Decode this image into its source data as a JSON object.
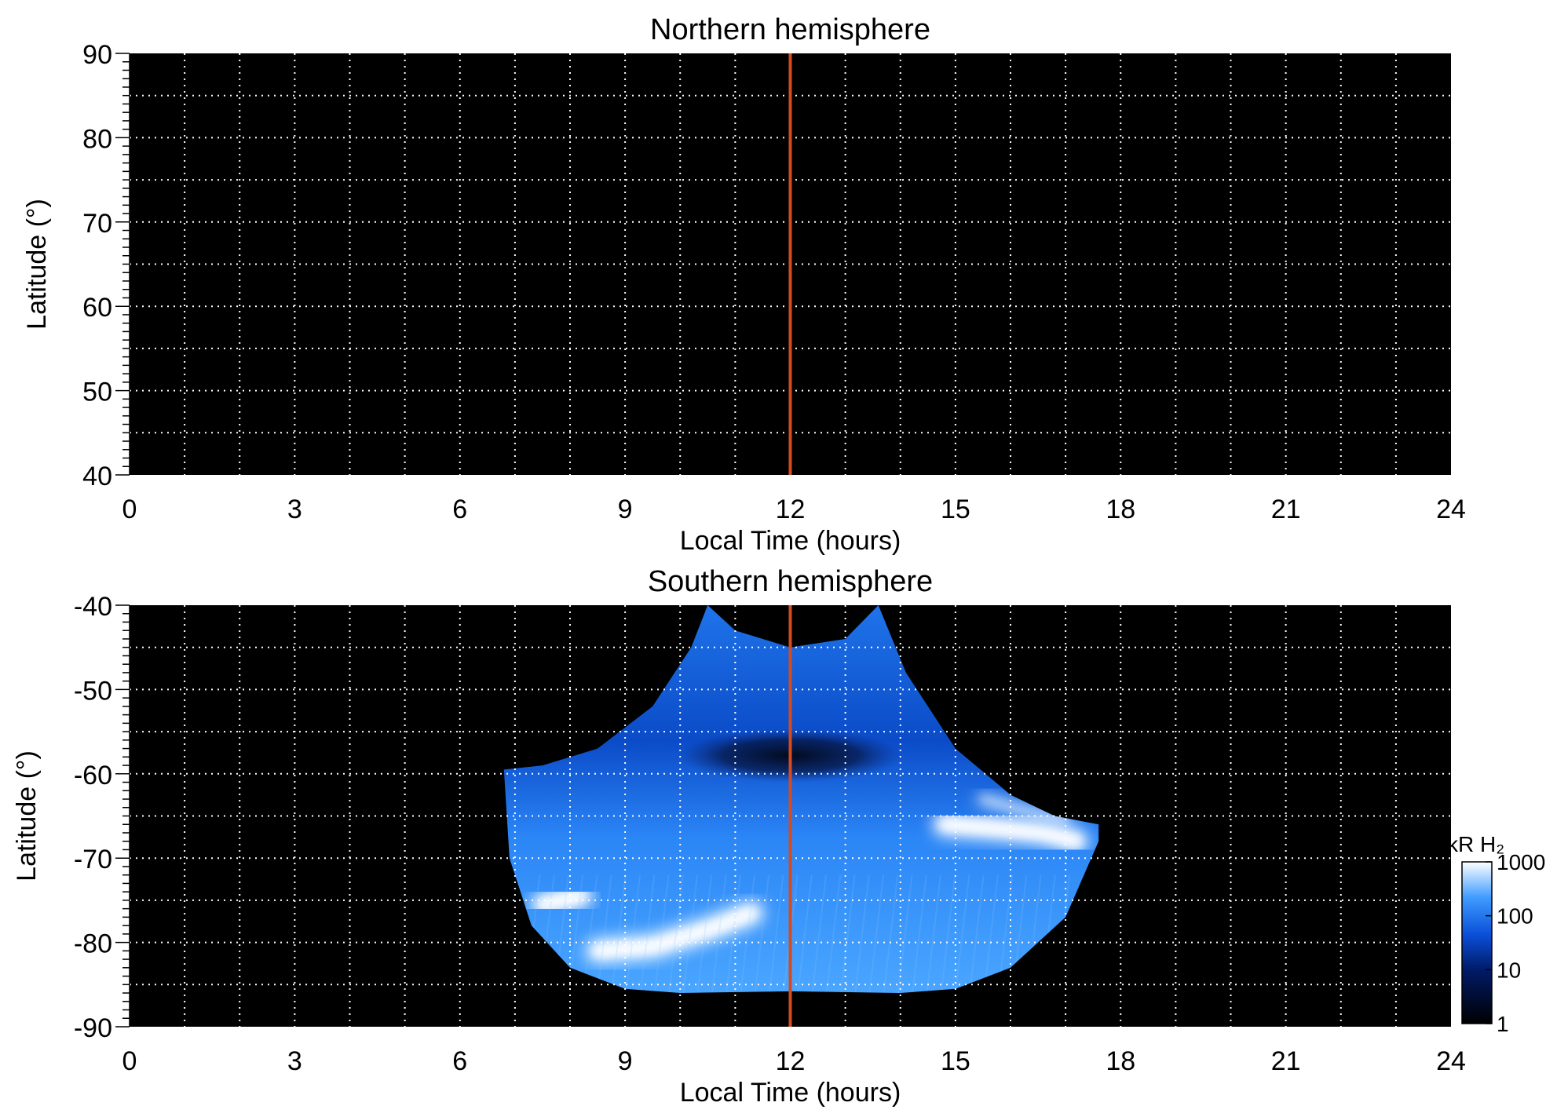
{
  "chart_data": [
    {
      "type": "heatmap",
      "title": "Northern hemisphere",
      "xlabel": "Local Time (hours)",
      "ylabel": "Latitude (°)",
      "xlim": [
        0,
        24
      ],
      "ylim": [
        40,
        90
      ],
      "xticks": [
        "0",
        "3",
        "6",
        "9",
        "12",
        "15",
        "18",
        "21",
        "24"
      ],
      "yticks": [
        "40",
        "50",
        "60",
        "70",
        "80",
        "90"
      ],
      "grid": true,
      "background": "#000000",
      "noon_marker": {
        "x": 12,
        "color": "#d84a1c"
      },
      "emission": []
    },
    {
      "type": "heatmap",
      "title": "Southern hemisphere",
      "xlabel": "Local Time (hours)",
      "ylabel": "Latitude (°)",
      "xlim": [
        0,
        24
      ],
      "ylim": [
        -90,
        -40
      ],
      "xticks": [
        "0",
        "3",
        "6",
        "9",
        "12",
        "15",
        "18",
        "21",
        "24"
      ],
      "yticks": [
        "-40",
        "-50",
        "-60",
        "-70",
        "-80",
        "-90"
      ],
      "grid": true,
      "background": "#000000",
      "noon_marker": {
        "x": 12,
        "color": "#d84a1c"
      },
      "emission_outline": [
        [
          10.5,
          -40
        ],
        [
          11.0,
          -43
        ],
        [
          12.0,
          -45
        ],
        [
          13.0,
          -44
        ],
        [
          13.6,
          -40
        ],
        [
          14.1,
          -48
        ],
        [
          15.0,
          -57
        ],
        [
          16.0,
          -62.5
        ],
        [
          16.8,
          -65
        ],
        [
          17.6,
          -66
        ],
        [
          17.6,
          -68
        ],
        [
          17.0,
          -77
        ],
        [
          16.0,
          -83
        ],
        [
          15.0,
          -85.5
        ],
        [
          14.0,
          -86
        ],
        [
          12.0,
          -85.8
        ],
        [
          10.0,
          -86
        ],
        [
          9.0,
          -85.5
        ],
        [
          8.0,
          -83
        ],
        [
          7.3,
          -78
        ],
        [
          6.9,
          -70
        ],
        [
          6.8,
          -59.5
        ],
        [
          7.5,
          -59
        ],
        [
          8.5,
          -57
        ],
        [
          9.5,
          -52
        ],
        [
          10.2,
          -45
        ]
      ],
      "bright_features": [
        {
          "name": "dawn arc",
          "points": [
            [
              8.5,
              -81
            ],
            [
              9.5,
              -80.5
            ],
            [
              10.5,
              -78.5
            ],
            [
              11.3,
              -76.5
            ]
          ],
          "level": "high"
        },
        {
          "name": "dawn spot",
          "points": [
            [
              7.5,
              -75.5
            ],
            [
              8.2,
              -74.5
            ]
          ],
          "level": "high"
        },
        {
          "name": "dusk arc",
          "points": [
            [
              14.8,
              -66
            ],
            [
              15.8,
              -66.5
            ],
            [
              16.6,
              -67
            ],
            [
              17.2,
              -68
            ]
          ],
          "level": "high"
        },
        {
          "name": "dusk limb",
          "points": [
            [
              15.5,
              -63
            ],
            [
              16.3,
              -64.5
            ],
            [
              17.0,
              -65.5
            ]
          ],
          "level": "medium"
        }
      ],
      "dark_features": [
        {
          "name": "dark band",
          "points": [
            [
              10.8,
              -57.5
            ],
            [
              12.0,
              -58
            ],
            [
              13.2,
              -58
            ]
          ],
          "level": "low"
        }
      ],
      "colorbar": {
        "label": "kR H₂",
        "scale": "log",
        "range": [
          1,
          1000
        ],
        "ticks": [
          "1",
          "10",
          "100",
          "1000"
        ],
        "colors": [
          "#000000",
          "#001a66",
          "#0a4fd8",
          "#3f9cff",
          "#ffffff"
        ]
      }
    }
  ]
}
